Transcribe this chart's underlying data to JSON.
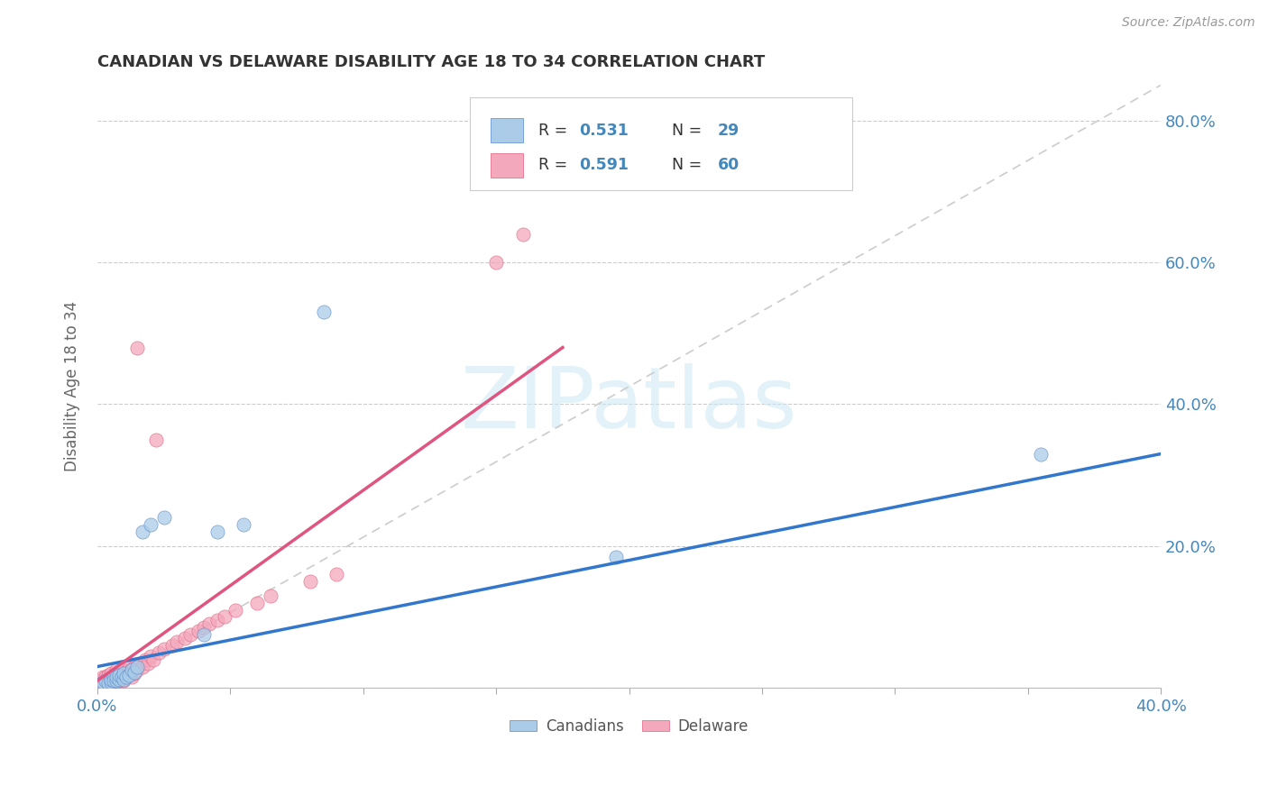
{
  "title": "CANADIAN VS DELAWARE DISABILITY AGE 18 TO 34 CORRELATION CHART",
  "source_text": "Source: ZipAtlas.com",
  "ylabel": "Disability Age 18 to 34",
  "xlim": [
    0.0,
    0.4
  ],
  "ylim": [
    0.0,
    0.85
  ],
  "legend_R_blue": "0.531",
  "legend_N_blue": "29",
  "legend_R_pink": "0.591",
  "legend_N_pink": "60",
  "canadians_color": "#aacce8",
  "delaware_color": "#f4a8bc",
  "canadians_edge": "#5588cc",
  "delaware_edge": "#e06080",
  "trendline_blue": "#3377cc",
  "trendline_pink": "#e05580",
  "diagonal_color": "#cccccc",
  "background_color": "#ffffff",
  "text_color": "#4488bb",
  "label_color": "#666666",
  "grid_color": "#cccccc",
  "canadians_x": [
    0.001,
    0.002,
    0.003,
    0.004,
    0.005,
    0.005,
    0.006,
    0.006,
    0.007,
    0.007,
    0.008,
    0.008,
    0.009,
    0.01,
    0.01,
    0.011,
    0.012,
    0.013,
    0.014,
    0.015,
    0.017,
    0.02,
    0.025,
    0.04,
    0.045,
    0.055,
    0.085,
    0.195,
    0.355
  ],
  "canadians_y": [
    0.005,
    0.008,
    0.01,
    0.006,
    0.008,
    0.012,
    0.015,
    0.01,
    0.01,
    0.015,
    0.012,
    0.018,
    0.015,
    0.012,
    0.02,
    0.016,
    0.018,
    0.025,
    0.022,
    0.03,
    0.22,
    0.23,
    0.24,
    0.075,
    0.22,
    0.23,
    0.53,
    0.185,
    0.33
  ],
  "delaware_x": [
    0.001,
    0.001,
    0.002,
    0.002,
    0.003,
    0.003,
    0.003,
    0.004,
    0.004,
    0.005,
    0.005,
    0.005,
    0.006,
    0.006,
    0.007,
    0.007,
    0.007,
    0.008,
    0.008,
    0.008,
    0.009,
    0.009,
    0.01,
    0.01,
    0.01,
    0.011,
    0.011,
    0.012,
    0.012,
    0.013,
    0.013,
    0.014,
    0.014,
    0.015,
    0.015,
    0.016,
    0.017,
    0.018,
    0.019,
    0.02,
    0.021,
    0.022,
    0.023,
    0.025,
    0.028,
    0.03,
    0.033,
    0.035,
    0.038,
    0.04,
    0.042,
    0.045,
    0.048,
    0.052,
    0.06,
    0.065,
    0.08,
    0.09,
    0.15,
    0.16
  ],
  "delaware_y": [
    0.005,
    0.01,
    0.008,
    0.015,
    0.01,
    0.015,
    0.005,
    0.01,
    0.018,
    0.008,
    0.012,
    0.02,
    0.015,
    0.01,
    0.012,
    0.018,
    0.025,
    0.01,
    0.015,
    0.02,
    0.012,
    0.025,
    0.01,
    0.018,
    0.025,
    0.015,
    0.022,
    0.02,
    0.028,
    0.025,
    0.015,
    0.02,
    0.03,
    0.025,
    0.48,
    0.035,
    0.03,
    0.04,
    0.035,
    0.045,
    0.04,
    0.35,
    0.05,
    0.055,
    0.06,
    0.065,
    0.07,
    0.075,
    0.08,
    0.085,
    0.09,
    0.095,
    0.1,
    0.11,
    0.12,
    0.13,
    0.15,
    0.16,
    0.6,
    0.64
  ],
  "blue_trend_x": [
    0.0,
    0.4
  ],
  "blue_trend_y": [
    0.03,
    0.33
  ],
  "pink_trend_x": [
    0.0,
    0.175
  ],
  "pink_trend_y": [
    0.01,
    0.48
  ]
}
